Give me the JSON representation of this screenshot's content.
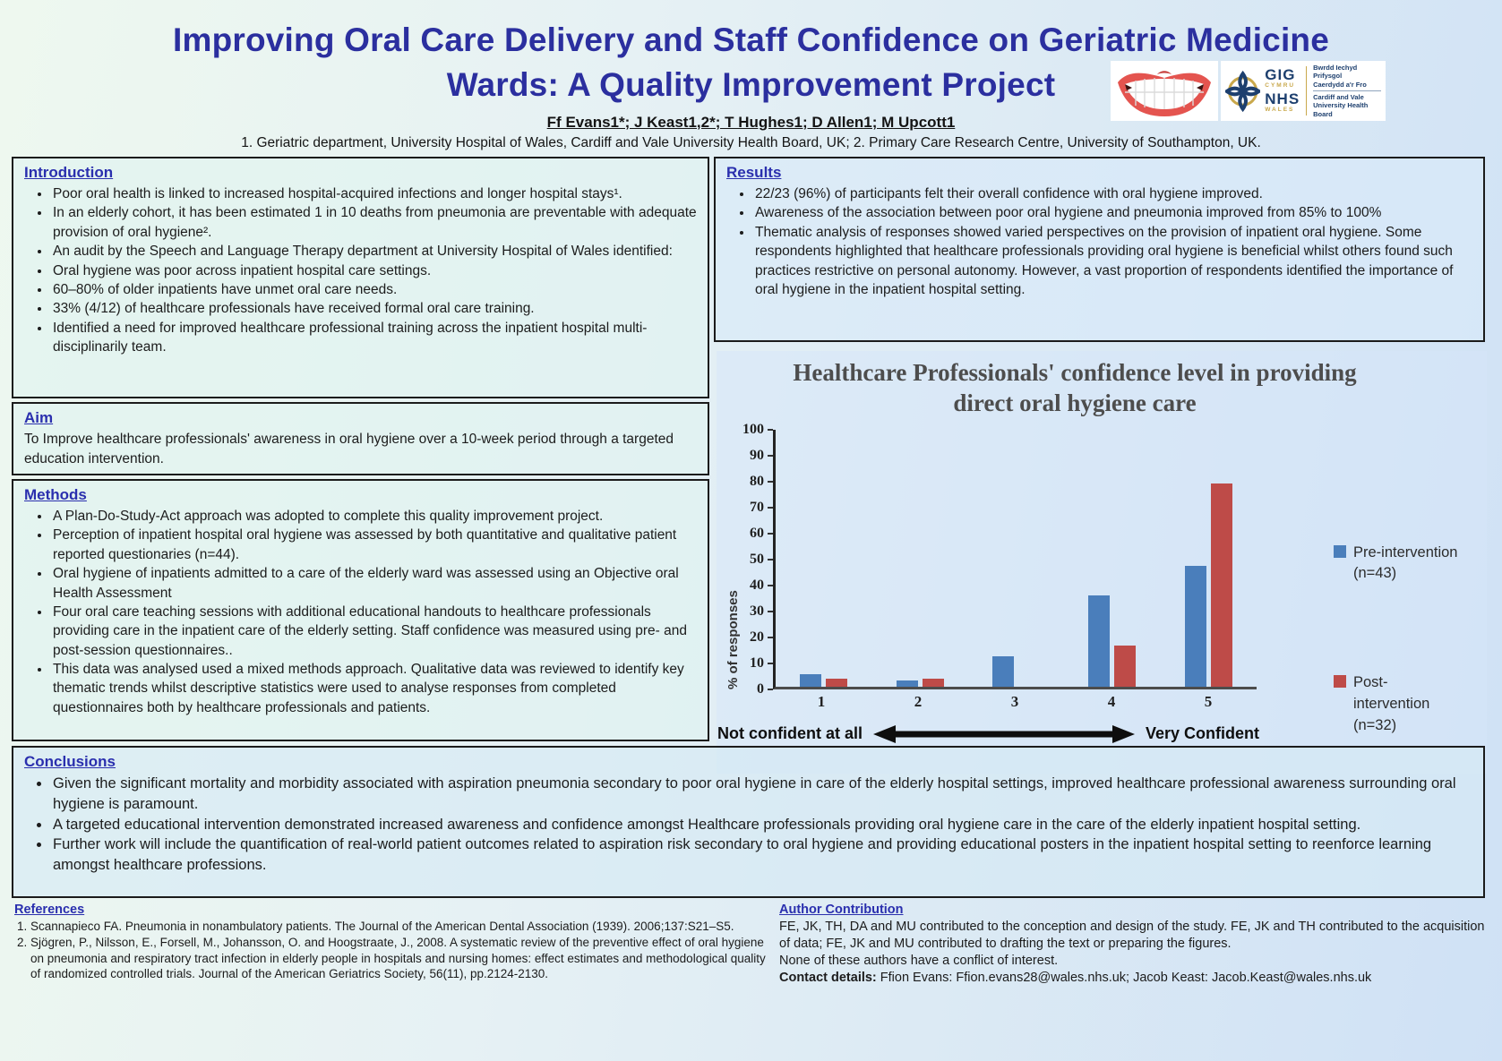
{
  "theme": {
    "title_color": "#2b2f9f",
    "heading_color": "#2a2fae"
  },
  "header": {
    "title_line1": "Improving Oral Care Delivery and Staff Confidence on Geriatric Medicine",
    "title_line2": "Wards: A Quality Improvement Project",
    "authors": "Ff Evans1*; J Keast1,2*; T Hughes1; D Allen1; M Upcott1",
    "affiliations": "1. Geriatric department, University Hospital of Wales, Cardiff and Vale University Health Board, UK; 2. Primary Care Research Centre, University of Southampton, UK.",
    "nhs_logo": {
      "gig": "GIG",
      "cymru": "CYMRU",
      "nhs": "NHS",
      "wales": "WALES",
      "right1": "Bwrdd Iechyd Prifysgol",
      "right2": "Caerdydd a'r Fro",
      "right3": "Cardiff and Vale",
      "right4": "University Health Board"
    }
  },
  "introduction": {
    "heading": "Introduction",
    "bullets": [
      "Poor oral health is linked to increased hospital-acquired infections and longer hospital stays¹.",
      "In an elderly cohort, it has been estimated 1 in 10 deaths from pneumonia are preventable with adequate provision of oral hygiene².",
      "An audit by the Speech and Language Therapy department at University Hospital of Wales identified:",
      "Oral hygiene was poor across inpatient hospital care settings.",
      "60–80% of older inpatients have unmet oral care needs.",
      "33% (4/12) of healthcare professionals have received formal oral care training.",
      "Identified a need for improved healthcare professional training across the inpatient hospital multi-disciplinarily team."
    ]
  },
  "aim": {
    "heading": "Aim",
    "text": "To Improve healthcare professionals' awareness in oral hygiene over a 10-week period through a targeted education intervention."
  },
  "methods": {
    "heading": "Methods",
    "bullets": [
      "A Plan-Do-Study-Act approach was adopted to complete this quality improvement project.",
      "Perception of inpatient hospital oral hygiene was assessed by both quantitative and qualitative patient reported questionaries (n=44).",
      "Oral hygiene of inpatients admitted to a care of the elderly ward was assessed using an Objective oral Health Assessment",
      "Four oral care teaching sessions with additional educational handouts to healthcare professionals providing care in the inpatient care of the elderly setting. Staff confidence was measured using pre- and post-session questionnaires..",
      "This data was analysed used a mixed methods approach. Qualitative data was reviewed to identify key thematic trends whilst descriptive statistics were used to analyse responses from completed questionnaires both by healthcare professionals and patients."
    ]
  },
  "results": {
    "heading": "Results",
    "bullets": [
      "22/23 (96%) of participants felt their overall confidence with oral hygiene improved.",
      "Awareness of the association between poor oral hygiene and pneumonia improved from 85% to 100%",
      "Thematic analysis of responses showed varied perspectives on the provision of inpatient oral hygiene. Some respondents highlighted that healthcare professionals providing oral hygiene is beneficial whilst others found such practices restrictive on personal autonomy. However, a vast proportion of respondents identified the importance of oral hygiene in the inpatient hospital setting."
    ]
  },
  "chart_data": {
    "type": "bar",
    "title": "Healthcare Professionals' confidence level in providing direct oral hygiene care",
    "categories": [
      "1",
      "2",
      "3",
      "4",
      "5"
    ],
    "series": [
      {
        "name": "Pre-intervention (n=43)",
        "legend_lines": [
          "Pre-intervention",
          "(n=43)"
        ],
        "color": "#4a7ebb",
        "values": [
          4.7,
          2.3,
          11.6,
          34.9,
          46.5
        ]
      },
      {
        "name": "Post-intervention (n=32)",
        "legend_lines": [
          "Post-",
          "intervention",
          "(n=32)"
        ],
        "color": "#be4b48",
        "values": [
          3.1,
          3.1,
          0,
          15.6,
          78.1
        ]
      }
    ],
    "xlabel": "",
    "ylabel": "% of responses",
    "ylim": [
      0,
      100
    ],
    "ytick_step": 10,
    "grid": false,
    "legend_position": "right",
    "x_axis_left_label": "Not confident at all",
    "x_axis_right_label": "Very Confident"
  },
  "conclusions": {
    "heading": "Conclusions",
    "bullets": [
      "Given the significant mortality and morbidity associated with aspiration pneumonia secondary to poor oral hygiene in care of the elderly hospital settings, improved healthcare professional awareness surrounding oral hygiene is paramount.",
      "A targeted educational intervention demonstrated increased awareness and confidence amongst Healthcare professionals providing oral hygiene care in the care of the elderly inpatient hospital setting.",
      "Further work will include the quantification of real-world patient outcomes related to aspiration risk secondary to oral hygiene and providing educational posters in the inpatient hospital setting to reenforce learning amongst healthcare professions."
    ]
  },
  "references": {
    "heading": "References",
    "items": [
      "Scannapieco FA. Pneumonia in nonambulatory patients. The Journal of the American Dental Association (1939). 2006;137:S21–S5.",
      "Sjögren, P., Nilsson, E., Forsell, M., Johansson, O. and Hoogstraate, J., 2008. A systematic review of the preventive effect of oral hygiene on pneumonia and respiratory tract infection in elderly people in hospitals and nursing homes: effect estimates and methodological quality of randomized controlled trials. Journal of the American Geriatrics Society, 56(11), pp.2124-2130."
    ]
  },
  "author_contribution": {
    "heading": "Author Contribution",
    "line1": "FE, JK, TH, DA and  MU contributed to the conception and design of the study. FE, JK and TH contributed to the acquisition of data; FE, JK and MU contributed to drafting the text or preparing the figures.",
    "line2": "None of these authors have a conflict of interest.",
    "contact_label": "Contact details:",
    "contact_text": " Ffion Evans: Ffion.evans28@wales.nhs.uk; Jacob Keast: Jacob.Keast@wales.nhs.uk"
  }
}
